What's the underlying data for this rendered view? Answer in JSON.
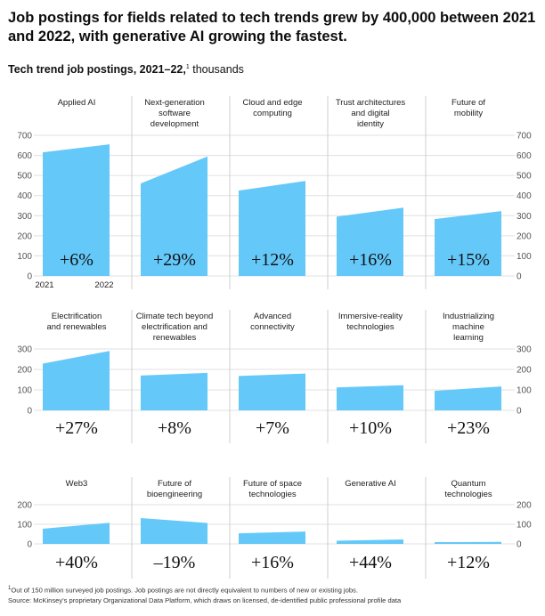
{
  "headline": "Job postings for fields related to tech trends grew by 400,000 between 2021 and 2022, with generative AI growing the fastest.",
  "subtitle": {
    "bold": "Tech trend job postings, 2021–22,",
    "footnote_mark": "1",
    "unit": "thousands"
  },
  "footnotes": {
    "note_mark": "1",
    "note": "Out of 150 million surveyed job postings. Job postings are not directly equivalent to numbers of new or existing jobs.",
    "source": "Source: McKinsey's proprietary Organizational Data Platform, which draws on licensed, de-identified public professional profile data"
  },
  "colors": {
    "area": "#64c8f9",
    "grid": "#e0e0e0",
    "divider": "#cfcfcf"
  },
  "chart_data": [
    {
      "type": "area",
      "ylim": [
        0,
        700
      ],
      "yticks": [
        0,
        100,
        200,
        300,
        400,
        500,
        600,
        700
      ],
      "x": [
        "2021",
        "2022"
      ],
      "panels": [
        {
          "label": [
            "Applied AI"
          ],
          "values": [
            615,
            655
          ],
          "change": "+6%"
        },
        {
          "label": [
            "Next-generation",
            "software",
            "development"
          ],
          "values": [
            460,
            595
          ],
          "change": "+29%"
        },
        {
          "label": [
            "Cloud and edge",
            "computing"
          ],
          "values": [
            425,
            473
          ],
          "change": "+12%"
        },
        {
          "label": [
            "Trust architectures",
            "and digital",
            "identity"
          ],
          "values": [
            295,
            340
          ],
          "change": "+16%"
        },
        {
          "label": [
            "Future of",
            "mobility"
          ],
          "values": [
            283,
            323
          ],
          "change": "+15%"
        }
      ]
    },
    {
      "type": "area",
      "ylim": [
        0,
        300
      ],
      "yticks": [
        0,
        100,
        200,
        300
      ],
      "x": [
        "2021",
        "2022"
      ],
      "panels": [
        {
          "label": [
            "Electrification",
            "and renewables"
          ],
          "values": [
            228,
            290
          ],
          "change": "+27%"
        },
        {
          "label": [
            "Climate tech beyond",
            "electrification and",
            "renewables"
          ],
          "values": [
            170,
            183
          ],
          "change": "+8%"
        },
        {
          "label": [
            "Advanced",
            "connectivity"
          ],
          "values": [
            168,
            180
          ],
          "change": "+7%"
        },
        {
          "label": [
            "Immersive-reality",
            "technologies"
          ],
          "values": [
            112,
            123
          ],
          "change": "+10%"
        },
        {
          "label": [
            "Industrializing",
            "machine",
            "learning"
          ],
          "values": [
            95,
            117
          ],
          "change": "+23%"
        }
      ]
    },
    {
      "type": "area",
      "ylim": [
        0,
        200
      ],
      "yticks": [
        0,
        100,
        200
      ],
      "x": [
        "2021",
        "2022"
      ],
      "panels": [
        {
          "label": [
            "Web3"
          ],
          "values": [
            77,
            108
          ],
          "change": "+40%"
        },
        {
          "label": [
            "Future of",
            "bioengineering"
          ],
          "values": [
            132,
            107
          ],
          "change": "–19%"
        },
        {
          "label": [
            "Future of space",
            "technologies"
          ],
          "values": [
            54,
            63
          ],
          "change": "+16%"
        },
        {
          "label": [
            "Generative AI"
          ],
          "values": [
            16,
            23
          ],
          "change": "+44%"
        },
        {
          "label": [
            "Quantum",
            "technologies"
          ],
          "values": [
            9,
            10
          ],
          "change": "+12%"
        }
      ]
    }
  ]
}
